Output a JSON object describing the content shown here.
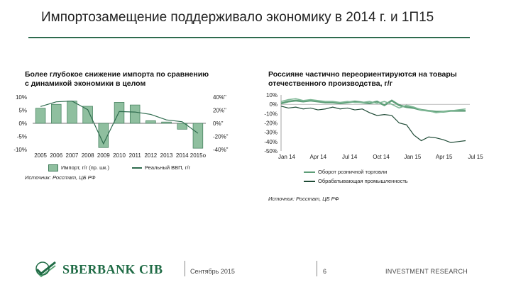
{
  "slide": {
    "title": "Импортозамещение поддерживало экономику в 2014 г. и 1П15",
    "footer": {
      "logo_text": "SBERBANK CIB",
      "date": "Сентябрь 2015",
      "page": "6",
      "tagline": "INVESTMENT RESEARCH"
    }
  },
  "left_panel": {
    "subtitle_line1": "Более глубокое снижение импорта по сравнению",
    "subtitle_line2": "с динамикой экономики в целом",
    "legend_bar": "Импорт, г/г (пр. шк.)",
    "legend_line": "Реальный ВВП, г/г",
    "source": "Источник: Росстат, ЦБ РФ"
  },
  "right_panel": {
    "subtitle_line1": "Россияне частично переориентируются на товары",
    "subtitle_line2": "отечественного производства, г/г",
    "source": "Источник: Росстат, ЦБ РФ"
  },
  "colors": {
    "accent": "#2e6b4e",
    "bar": "#8fbf9f",
    "bar_edge": "#3e7a58",
    "retail": "#5e9e78",
    "industry": "#1e4a35"
  },
  "chart_data": [
    {
      "type": "bar",
      "categories": [
        "2005",
        "2006",
        "2007",
        "2008",
        "2009",
        "2010",
        "2011",
        "2012",
        "2013",
        "2014",
        "2015о"
      ],
      "left_axis": {
        "ticks": [
          "10%",
          "5%",
          "0%",
          "-5%",
          "-10%"
        ],
        "range": [
          -10,
          10
        ]
      },
      "right_axis": {
        "ticks": [
          "40%\"",
          "20%\"",
          "0%\"",
          "-20%\"",
          "-40%\""
        ],
        "range": [
          -40,
          40
        ]
      },
      "series": [
        {
          "name": "Импорт, г/г (пр. шк.)",
          "type": "bar",
          "axis": "right",
          "values": [
            23,
            29,
            34,
            26,
            -37,
            32,
            28,
            4,
            2,
            -9,
            -38
          ]
        },
        {
          "name": "Реальный ВВП, г/г",
          "type": "line",
          "axis": "left",
          "values": [
            6.4,
            8.2,
            8.5,
            5.2,
            -7.8,
            4.5,
            4.3,
            3.4,
            1.3,
            0.6,
            -3.8
          ]
        }
      ]
    },
    {
      "type": "line",
      "x_ticks": [
        "Jan 14",
        "Apr 14",
        "Jul 14",
        "Oct 14",
        "Jan 15",
        "Apr 15",
        "Jul 15"
      ],
      "y_ticks": [
        "10%",
        "0%",
        "-10%",
        "-20%",
        "-30%",
        "-40%",
        "-50%"
      ],
      "ylim": [
        -50,
        10
      ],
      "series": [
        {
          "name": "Оборот розничной торговли",
          "values": [
            1,
            3,
            4,
            3,
            4,
            3,
            2,
            2,
            1,
            2,
            3,
            2,
            1,
            3,
            -1,
            4,
            -1,
            -3,
            -4,
            -6,
            -7,
            -8,
            -8,
            -7,
            -7,
            -7
          ]
        },
        {
          "name": "Обрабатывающая промышленность",
          "values": [
            -2,
            -4,
            -3,
            -5,
            -4,
            -6,
            -5,
            -3,
            -5,
            -4,
            -6,
            -5,
            -9,
            -12,
            -11,
            -12,
            -20,
            -22,
            -33,
            -39,
            -35,
            -36,
            -38,
            -41,
            -40,
            -39
          ]
        },
        {
          "name": "",
          "values": [
            3,
            5,
            6,
            4,
            5,
            4,
            3,
            3,
            2,
            3,
            2,
            2,
            3,
            1,
            3,
            0,
            -4,
            -1,
            -3,
            -6,
            -7,
            -9,
            -8,
            -7,
            -6,
            -5
          ]
        }
      ]
    }
  ]
}
